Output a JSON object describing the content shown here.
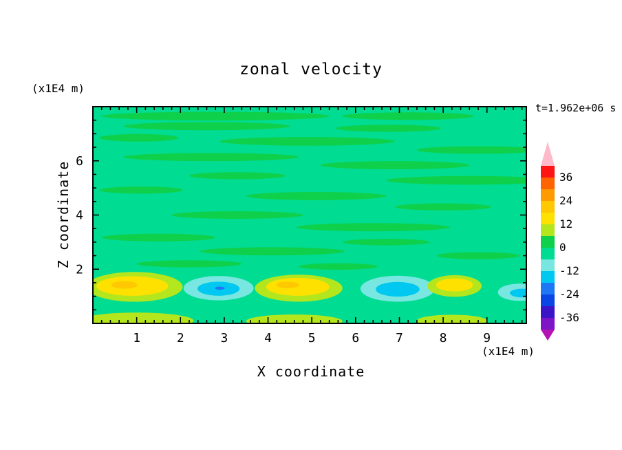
{
  "chart_data": {
    "type": "heatmap",
    "subtype": "filled-contour",
    "title": "zonal velocity",
    "xlabel": "X coordinate",
    "ylabel": "Z coordinate",
    "x_unit": "(x1E4 m)",
    "y_unit": "(x1E4 m)",
    "time_annotation": "t=1.962e+06 s",
    "xlim": [
      0,
      9.9
    ],
    "ylim": [
      0,
      8
    ],
    "x_ticks": [
      1,
      2,
      3,
      4,
      5,
      6,
      7,
      8,
      9
    ],
    "x_minor_step": 0.2,
    "y_ticks": [
      2,
      4,
      6
    ],
    "y_minor_step": 0.5,
    "grid": false,
    "colorbar": {
      "position": "right",
      "contour_interval": 6,
      "boundaries": [
        42,
        36,
        30,
        24,
        18,
        12,
        6,
        0,
        -6,
        -12,
        -18,
        -24,
        -30,
        -36,
        -42
      ],
      "band_colors_top_to_bottom": [
        "#FF1414",
        "#FF6400",
        "#FF9B00",
        "#FFC800",
        "#FFE100",
        "#B4E61E",
        "#0FD04B",
        "#00DC91",
        "#78E6E1",
        "#00C8F0",
        "#1E78F5",
        "#0A46E6",
        "#3C14C8",
        "#7D14C8"
      ],
      "arrow_top_color": "#FFB9C8",
      "arrow_bottom_color": "#B414B4",
      "tick_labels": [
        "36",
        "24",
        "12",
        "0",
        "-12",
        "-24",
        "-36"
      ]
    },
    "field_summary": "Velocity near zero (-6 to +6 band) over most of the domain with thin streaky anomalies; alternating positive (yellow, ~+12 to +24) and negative (cyan/blue, ~-12 to -24) cells along the bottom boundary near z=1 to 1.5",
    "field": {
      "background_color": "#00DC91",
      "background_level": "-6 to 0",
      "streak_color": "#0FD04B",
      "streak_level": "0 to 6",
      "streaks": [
        [
          2.8,
          7.65,
          2.6,
          0.16
        ],
        [
          7.2,
          7.65,
          1.5,
          0.14
        ],
        [
          2.6,
          7.28,
          1.9,
          0.15
        ],
        [
          6.75,
          7.2,
          1.2,
          0.13
        ],
        [
          1.05,
          6.85,
          0.9,
          0.14
        ],
        [
          4.9,
          6.72,
          2.0,
          0.16
        ],
        [
          8.8,
          6.4,
          1.4,
          0.14
        ],
        [
          2.7,
          6.14,
          2.0,
          0.15
        ],
        [
          6.9,
          5.84,
          1.7,
          0.15
        ],
        [
          3.3,
          5.45,
          1.1,
          0.13
        ],
        [
          8.6,
          5.28,
          1.9,
          0.16
        ],
        [
          1.1,
          4.92,
          0.95,
          0.13
        ],
        [
          5.1,
          4.7,
          1.6,
          0.15
        ],
        [
          8.0,
          4.3,
          1.1,
          0.13
        ],
        [
          3.3,
          4.0,
          1.5,
          0.14
        ],
        [
          6.4,
          3.55,
          1.75,
          0.15
        ],
        [
          1.5,
          3.17,
          1.3,
          0.14
        ],
        [
          6.7,
          3.0,
          1.0,
          0.12
        ],
        [
          4.1,
          2.66,
          1.65,
          0.15
        ],
        [
          8.8,
          2.5,
          0.95,
          0.13
        ],
        [
          2.2,
          2.2,
          1.2,
          0.13
        ],
        [
          5.6,
          2.1,
          0.9,
          0.12
        ]
      ],
      "features": [
        {
          "kind": "bottom-boundary-patches",
          "layers": [
            {
              "cx": 1.0,
              "cz": 0.1,
              "rx": 1.3,
              "rz": 0.3,
              "color": "#B4E61E"
            },
            {
              "cx": 4.6,
              "cz": 0.08,
              "rx": 1.1,
              "rz": 0.25,
              "color": "#B4E61E"
            },
            {
              "cx": 8.2,
              "cz": 0.1,
              "rx": 0.8,
              "rz": 0.22,
              "color": "#B4E61E"
            }
          ]
        },
        {
          "kind": "maximum",
          "x": 0.9,
          "z": 1.4,
          "approx_peak": "+18 to +24",
          "layers": [
            {
              "cx": 0.95,
              "cz": 1.35,
              "rx": 1.1,
              "rz": 0.55,
              "color": "#B4E61E"
            },
            {
              "cx": 0.9,
              "cz": 1.38,
              "rx": 0.82,
              "rz": 0.36,
              "color": "#FFE100"
            },
            {
              "cx": 0.72,
              "cz": 1.42,
              "rx": 0.3,
              "rz": 0.14,
              "color": "#FFC800"
            }
          ]
        },
        {
          "kind": "minimum",
          "x": 2.9,
          "z": 1.3,
          "approx_peak": "-18 to -24",
          "layers": [
            {
              "cx": 2.87,
              "cz": 1.3,
              "rx": 0.8,
              "rz": 0.45,
              "color": "#78E6E1"
            },
            {
              "cx": 2.87,
              "cz": 1.28,
              "rx": 0.48,
              "rz": 0.26,
              "color": "#00C8F0"
            },
            {
              "cx": 2.9,
              "cz": 1.3,
              "rx": 0.11,
              "rz": 0.06,
              "color": "#1E78F5"
            }
          ]
        },
        {
          "kind": "maximum",
          "x": 4.7,
          "z": 1.37,
          "approx_peak": "+18 to +24",
          "layers": [
            {
              "cx": 4.7,
              "cz": 1.3,
              "rx": 1.0,
              "rz": 0.5,
              "color": "#B4E61E"
            },
            {
              "cx": 4.68,
              "cz": 1.35,
              "rx": 0.72,
              "rz": 0.33,
              "color": "#FFE100"
            },
            {
              "cx": 4.45,
              "cz": 1.42,
              "rx": 0.26,
              "rz": 0.12,
              "color": "#FFC800"
            }
          ]
        },
        {
          "kind": "minimum",
          "x": 7.0,
          "z": 1.27,
          "approx_peak": "-12 to -18",
          "layers": [
            {
              "cx": 6.96,
              "cz": 1.28,
              "rx": 0.85,
              "rz": 0.48,
              "color": "#78E6E1"
            },
            {
              "cx": 6.96,
              "cz": 1.26,
              "rx": 0.5,
              "rz": 0.27,
              "color": "#00C8F0"
            }
          ]
        },
        {
          "kind": "maximum",
          "x": 8.3,
          "z": 1.42,
          "approx_peak": "+12 to +18",
          "layers": [
            {
              "cx": 8.26,
              "cz": 1.38,
              "rx": 0.62,
              "rz": 0.4,
              "color": "#B4E61E"
            },
            {
              "cx": 8.26,
              "cz": 1.42,
              "rx": 0.42,
              "rz": 0.24,
              "color": "#FFE100"
            }
          ]
        },
        {
          "kind": "minimum",
          "x": 9.7,
          "z": 1.15,
          "approx_peak": "-12 to -18",
          "layers": [
            {
              "cx": 9.75,
              "cz": 1.15,
              "rx": 0.5,
              "rz": 0.32,
              "color": "#78E6E1"
            },
            {
              "cx": 9.8,
              "cz": 1.12,
              "rx": 0.28,
              "rz": 0.16,
              "color": "#00C8F0"
            }
          ]
        }
      ]
    }
  }
}
